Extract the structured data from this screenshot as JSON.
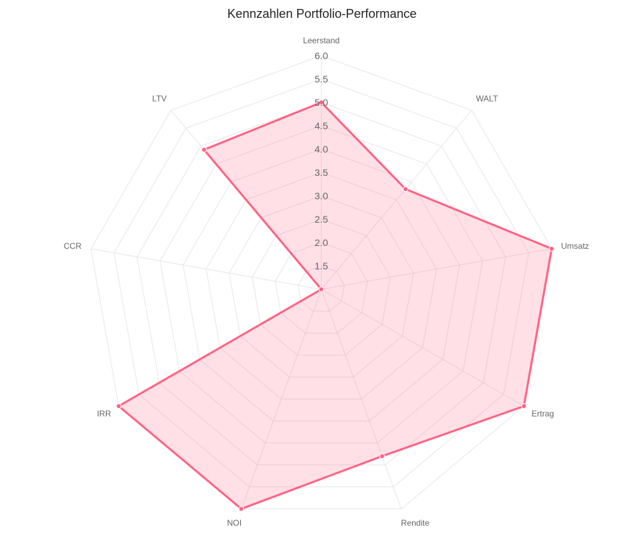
{
  "chart_data": {
    "type": "radar",
    "title": "Kennzahlen Portfolio-Performance",
    "categories": [
      "Leerstand",
      "WALT",
      "Umsatz",
      "Ertrag",
      "Rendite",
      "NOI",
      "IRR",
      "CCR",
      "LTV"
    ],
    "series": [
      {
        "values": [
          5.0,
          3.8,
          6.0,
          6.0,
          4.8,
          6.0,
          6.0,
          1.0,
          4.9
        ]
      }
    ],
    "rlim": [
      1.0,
      6.0
    ],
    "ticks": [
      1.5,
      2.0,
      2.5,
      3.0,
      3.5,
      4.0,
      4.5,
      5.0,
      5.5,
      6.0
    ],
    "tick_labels": [
      "1.5",
      "2.0",
      "2.5",
      "3.0",
      "3.5",
      "4.0",
      "4.5",
      "5.0",
      "5.5",
      "6.0"
    ],
    "grid": true,
    "colors": {
      "line": "#ff6384",
      "fill": "rgba(255,99,132,0.2)",
      "grid": "#e6e6e6"
    }
  }
}
